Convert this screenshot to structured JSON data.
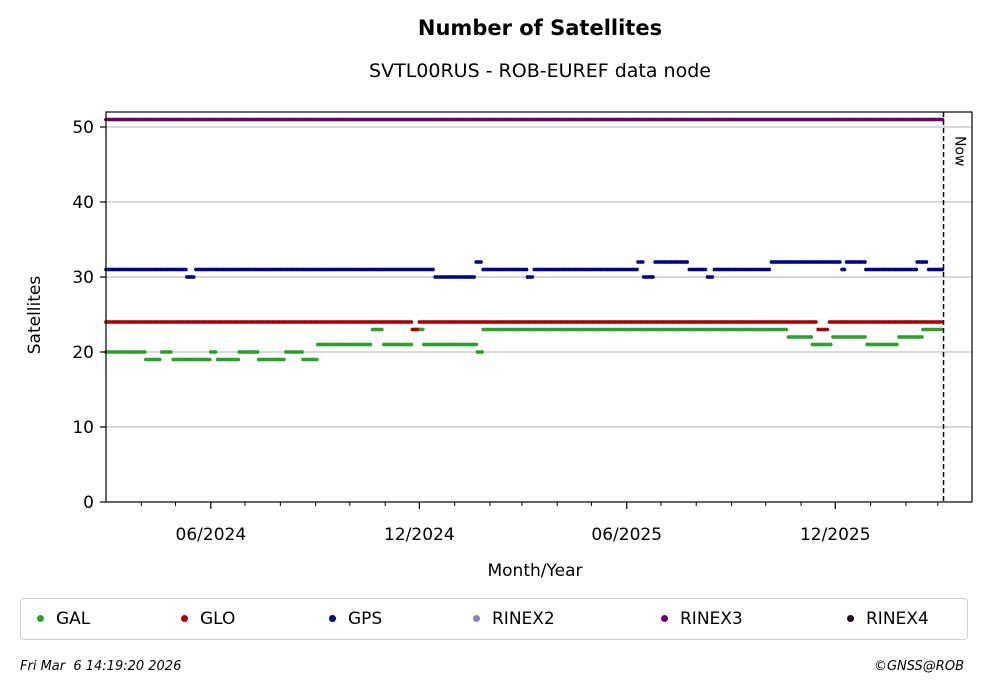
{
  "header": {
    "title": "Number of Satellites",
    "subtitle": "SVTL00RUS - ROB-EUREF data node"
  },
  "footer": {
    "timestamp": "Fri Mar  6 14:19:20 2026",
    "copyright": "©GNSS@ROB"
  },
  "chart_data": {
    "type": "scatter",
    "title": "Number of Satellites",
    "subtitle": "SVTL00RUS - ROB-EUREF data node",
    "xlabel": "Month/Year",
    "ylabel": "Satellites",
    "x_range": [
      "2024-03-01",
      "2026-03-31"
    ],
    "ylim": [
      0,
      52
    ],
    "y_ticks": [
      0,
      10,
      20,
      30,
      40,
      50
    ],
    "x_ticks": [
      {
        "date": "2024-06-01",
        "label": "06/2024"
      },
      {
        "date": "2024-12-01",
        "label": "12/2024"
      },
      {
        "date": "2025-06-01",
        "label": "06/2025"
      },
      {
        "date": "2025-12-01",
        "label": "12/2025"
      }
    ],
    "x_minor_ticks": [
      "2024-04-01",
      "2024-05-01",
      "2024-07-01",
      "2024-08-01",
      "2024-09-01",
      "2024-10-01",
      "2024-11-01",
      "2025-01-01",
      "2025-02-01",
      "2025-03-01",
      "2025-04-01",
      "2025-05-01",
      "2025-07-01",
      "2025-08-01",
      "2025-09-01",
      "2025-10-01",
      "2025-11-01",
      "2026-01-01",
      "2026-02-01",
      "2026-03-01"
    ],
    "grid": "horizontal",
    "now_marker": {
      "date": "2026-03-06",
      "label": "Now"
    },
    "legend_position": "bottom",
    "series": [
      {
        "name": "GAL",
        "color": "#2ca02c",
        "segments": [
          {
            "from": "2024-03-01",
            "to": "2024-04-04",
            "value": 20
          },
          {
            "from": "2024-04-05",
            "to": "2024-04-18",
            "value": 19
          },
          {
            "from": "2024-04-19",
            "to": "2024-04-28",
            "value": 20
          },
          {
            "from": "2024-04-29",
            "to": "2024-05-31",
            "value": 19
          },
          {
            "from": "2024-06-01",
            "to": "2024-06-06",
            "value": 20
          },
          {
            "from": "2024-06-07",
            "to": "2024-06-25",
            "value": 19
          },
          {
            "from": "2024-06-26",
            "to": "2024-07-12",
            "value": 20
          },
          {
            "from": "2024-07-13",
            "to": "2024-08-05",
            "value": 19
          },
          {
            "from": "2024-08-06",
            "to": "2024-08-20",
            "value": 20
          },
          {
            "from": "2024-08-21",
            "to": "2024-09-02",
            "value": 19
          },
          {
            "from": "2024-09-03",
            "to": "2024-10-20",
            "value": 21
          },
          {
            "from": "2024-10-21",
            "to": "2024-10-30",
            "value": 23
          },
          {
            "from": "2024-10-31",
            "to": "2024-11-25",
            "value": 21
          },
          {
            "from": "2024-11-26",
            "to": "2024-12-04",
            "value": 23
          },
          {
            "from": "2024-12-05",
            "to": "2025-01-20",
            "value": 21
          },
          {
            "from": "2025-01-21",
            "to": "2025-01-25",
            "value": 20
          },
          {
            "from": "2025-01-26",
            "to": "2025-04-25",
            "value": 23
          },
          {
            "from": "2025-04-26",
            "to": "2025-10-20",
            "value": 23
          },
          {
            "from": "2025-10-21",
            "to": "2025-11-10",
            "value": 22
          },
          {
            "from": "2025-11-11",
            "to": "2025-11-28",
            "value": 21
          },
          {
            "from": "2025-11-29",
            "to": "2025-12-28",
            "value": 22
          },
          {
            "from": "2025-12-29",
            "to": "2026-01-25",
            "value": 21
          },
          {
            "from": "2026-01-26",
            "to": "2026-02-15",
            "value": 22
          },
          {
            "from": "2026-02-16",
            "to": "2026-03-05",
            "value": 23
          }
        ]
      },
      {
        "name": "GLO",
        "color": "#aa0000",
        "segments": [
          {
            "from": "2024-03-01",
            "to": "2024-11-24",
            "value": 24
          },
          {
            "from": "2024-11-25",
            "to": "2024-11-30",
            "value": 23
          },
          {
            "from": "2024-12-01",
            "to": "2025-11-15",
            "value": 24
          },
          {
            "from": "2025-11-16",
            "to": "2025-11-25",
            "value": 23
          },
          {
            "from": "2025-11-26",
            "to": "2026-03-05",
            "value": 24
          }
        ]
      },
      {
        "name": "GPS",
        "color": "#00008b",
        "segments": [
          {
            "from": "2024-03-01",
            "to": "2024-05-10",
            "value": 31
          },
          {
            "from": "2024-05-11",
            "to": "2024-05-18",
            "value": 30
          },
          {
            "from": "2024-05-19",
            "to": "2024-12-14",
            "value": 31
          },
          {
            "from": "2024-12-15",
            "to": "2025-01-19",
            "value": 30
          },
          {
            "from": "2025-01-20",
            "to": "2025-01-25",
            "value": 32
          },
          {
            "from": "2025-01-26",
            "to": "2025-03-05",
            "value": 31
          },
          {
            "from": "2025-03-06",
            "to": "2025-03-11",
            "value": 30
          },
          {
            "from": "2025-03-12",
            "to": "2025-06-10",
            "value": 31
          },
          {
            "from": "2025-06-11",
            "to": "2025-06-15",
            "value": 32
          },
          {
            "from": "2025-06-16",
            "to": "2025-06-25",
            "value": 30
          },
          {
            "from": "2025-06-26",
            "to": "2025-07-25",
            "value": 32
          },
          {
            "from": "2025-07-26",
            "to": "2025-08-10",
            "value": 31
          },
          {
            "from": "2025-08-11",
            "to": "2025-08-16",
            "value": 30
          },
          {
            "from": "2025-08-17",
            "to": "2025-10-05",
            "value": 31
          },
          {
            "from": "2025-10-06",
            "to": "2025-12-06",
            "value": 32
          },
          {
            "from": "2025-12-07",
            "to": "2025-12-10",
            "value": 31
          },
          {
            "from": "2025-12-11",
            "to": "2025-12-27",
            "value": 32
          },
          {
            "from": "2025-12-28",
            "to": "2026-02-10",
            "value": 31
          },
          {
            "from": "2026-02-11",
            "to": "2026-02-20",
            "value": 32
          },
          {
            "from": "2026-02-21",
            "to": "2026-03-05",
            "value": 31
          }
        ]
      },
      {
        "name": "RINEX2",
        "color": "#8c7fc1",
        "segments": []
      },
      {
        "name": "RINEX3",
        "color": "#6a0066",
        "segments": [
          {
            "from": "2024-03-01",
            "to": "2026-03-05",
            "value": 51
          }
        ]
      },
      {
        "name": "RINEX4",
        "color": "#1a0a1a",
        "segments": []
      }
    ]
  }
}
